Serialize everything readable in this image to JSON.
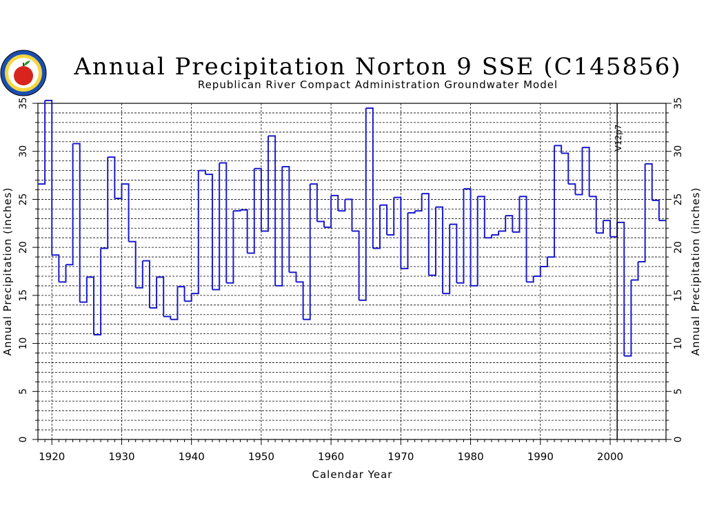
{
  "colors": {
    "step": "#1a1acc",
    "grid": "#000000",
    "axis": "#000000"
  },
  "logo": {
    "icon": "apple-seal-icon"
  },
  "chart_data": {
    "type": "line",
    "style": "step",
    "title": "Annual Precipitation Norton 9 SSE (C145856)",
    "subtitle": "Republican River Compact Administration Groundwater Model",
    "xlabel": "Calendar Year",
    "ylabel_left": "Annual Precipitation (inches)",
    "ylabel_right": "Annual Precipitation (inches)",
    "xlim": [
      1918,
      2008
    ],
    "ylim": [
      0,
      35
    ],
    "x_ticks": [
      1920,
      1930,
      1940,
      1950,
      1960,
      1970,
      1980,
      1990,
      2000
    ],
    "y_ticks": [
      0,
      5,
      10,
      15,
      20,
      25,
      30,
      35
    ],
    "grid": "dashed",
    "annotations": [
      {
        "x": 2001,
        "label": "V12p7"
      }
    ],
    "years": [
      1918,
      1919,
      1920,
      1921,
      1922,
      1923,
      1924,
      1925,
      1926,
      1927,
      1928,
      1929,
      1930,
      1931,
      1932,
      1933,
      1934,
      1935,
      1936,
      1937,
      1938,
      1939,
      1940,
      1941,
      1942,
      1943,
      1944,
      1945,
      1946,
      1947,
      1948,
      1949,
      1950,
      1951,
      1952,
      1953,
      1954,
      1955,
      1956,
      1957,
      1958,
      1959,
      1960,
      1961,
      1962,
      1963,
      1964,
      1965,
      1966,
      1967,
      1968,
      1969,
      1970,
      1971,
      1972,
      1973,
      1974,
      1975,
      1976,
      1977,
      1978,
      1979,
      1980,
      1981,
      1982,
      1983,
      1984,
      1985,
      1986,
      1987,
      1988,
      1989,
      1990,
      1991,
      1992,
      1993,
      1994,
      1995,
      1996,
      1997,
      1998,
      1999,
      2000,
      2001,
      2002,
      2003,
      2004,
      2005,
      2006,
      2007
    ],
    "values": [
      26.6,
      35.3,
      19.2,
      16.4,
      18.2,
      30.8,
      14.3,
      16.9,
      10.9,
      19.9,
      29.4,
      25.1,
      26.6,
      20.6,
      15.8,
      18.6,
      13.7,
      16.9,
      12.8,
      12.5,
      15.9,
      14.4,
      15.2,
      28.0,
      27.6,
      15.6,
      28.8,
      16.3,
      23.8,
      23.9,
      19.4,
      28.2,
      21.7,
      31.6,
      16.0,
      28.4,
      17.4,
      16.4,
      12.5,
      26.6,
      22.7,
      22.1,
      25.4,
      23.8,
      25.0,
      21.7,
      14.5,
      34.5,
      19.9,
      24.4,
      21.3,
      25.2,
      17.8,
      23.6,
      23.8,
      25.6,
      17.1,
      24.2,
      15.2,
      22.4,
      16.3,
      26.1,
      16.0,
      25.3,
      21.0,
      21.3,
      21.7,
      23.3,
      21.6,
      25.3,
      16.4,
      17.0,
      18.0,
      19.0,
      30.6,
      29.8,
      26.6,
      25.5,
      30.4,
      25.3,
      21.5,
      22.8,
      21.1,
      22.6,
      8.7,
      16.6,
      18.5,
      28.7,
      24.9,
      22.8
    ]
  }
}
